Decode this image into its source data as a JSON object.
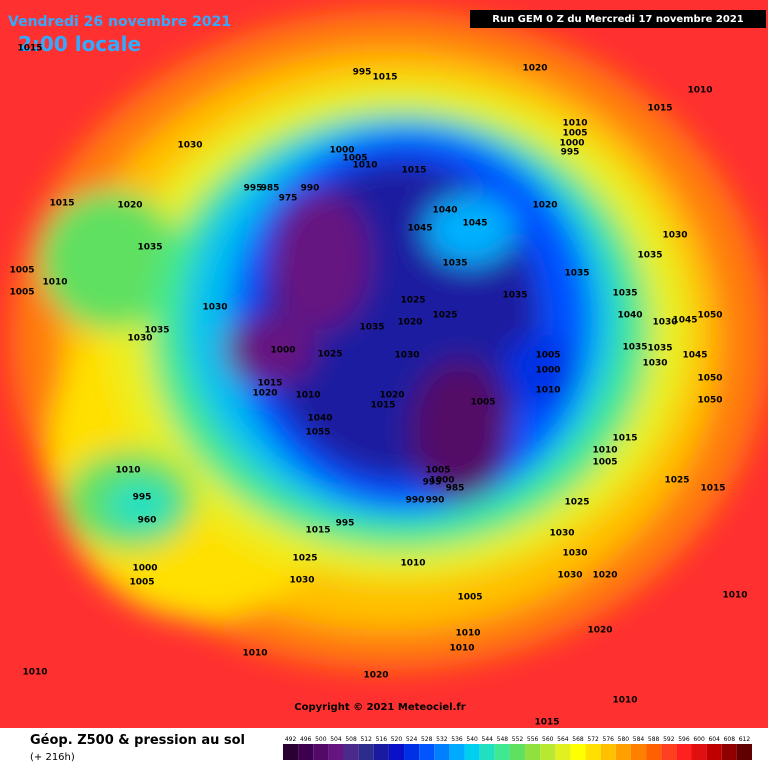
{
  "header": {
    "date": "Vendredi 26 novembre 2021",
    "time": "2:00 locale",
    "run": "Run GEM 0 Z du Mercredi 17 novembre 2021"
  },
  "copyright": "Copyright © 2021 Meteociel.fr",
  "footer": {
    "title": "Géop. Z500 & pression au sol",
    "lead": "(+ 216h)"
  },
  "isobar_labels": [
    1015,
    1020,
    995,
    1015,
    1010,
    1015,
    1030,
    1010,
    1005,
    1000,
    995,
    1000,
    1005,
    1010,
    1015,
    995,
    985,
    975,
    990,
    1015,
    1020,
    1040,
    1045,
    1020,
    1045,
    1035,
    1035,
    1035,
    1030,
    1035,
    1005,
    1010,
    1005,
    1035,
    1035,
    1030,
    1025,
    1040,
    1035,
    1030,
    1020,
    1025,
    1035,
    1030,
    1045,
    1050,
    1000,
    1025,
    1030,
    1005,
    1035,
    1035,
    1045,
    1000,
    1030,
    1050,
    1015,
    1010,
    1020,
    1020,
    1010,
    1005,
    1015,
    1050,
    1040,
    1055,
    1015,
    1010,
    1005,
    1005,
    1010,
    1000,
    995,
    985,
    990,
    990,
    1025,
    1015,
    995,
    960,
    1025,
    1030,
    1015,
    995,
    1030,
    1010,
    1025,
    1030,
    1020,
    1000,
    1005,
    1030,
    1005,
    1010,
    1020,
    1010,
    1010,
    1010,
    1010,
    1020,
    1010,
    1015
  ],
  "legend": {
    "values": [
      492,
      496,
      500,
      504,
      508,
      512,
      516,
      520,
      524,
      528,
      532,
      536,
      540,
      544,
      548,
      552,
      556,
      560,
      564,
      568,
      572,
      576,
      580,
      584,
      588,
      592,
      596,
      600,
      604,
      608,
      612
    ],
    "colors": [
      "#2a0033",
      "#3d0050",
      "#520a66",
      "#661580",
      "#4a2a8a",
      "#2c2c8c",
      "#1a1aa0",
      "#0a10c8",
      "#0030e6",
      "#0055ff",
      "#0080ff",
      "#00aaff",
      "#00d0f0",
      "#20e0c0",
      "#40e890",
      "#60e060",
      "#90e040",
      "#b8e830",
      "#e0f020",
      "#ffff00",
      "#ffe000",
      "#ffc000",
      "#ffa000",
      "#ff8000",
      "#ff6000",
      "#ff4020",
      "#ff2020",
      "#e01010",
      "#c00000",
      "#900000",
      "#600000"
    ]
  }
}
